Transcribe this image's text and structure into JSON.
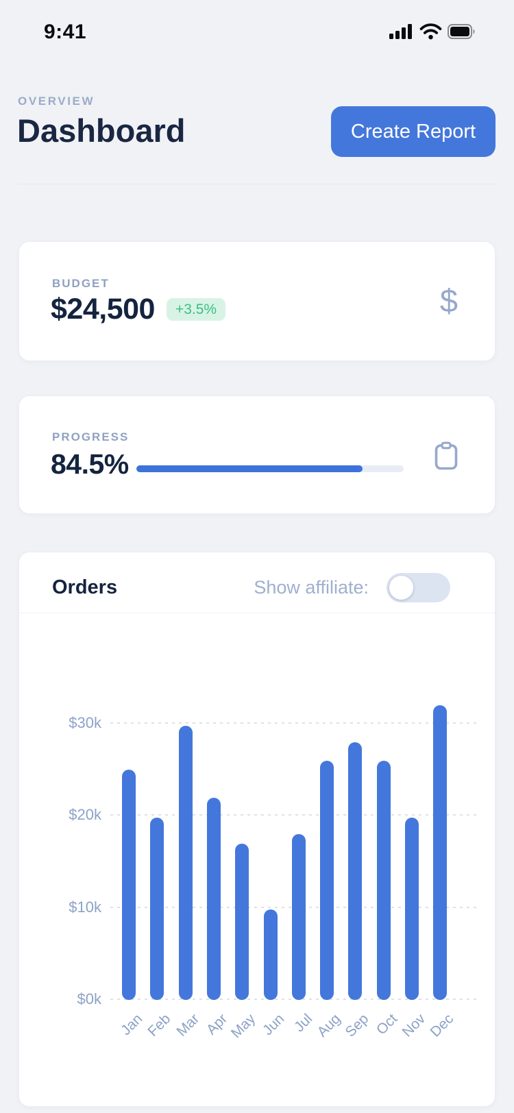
{
  "status_bar": {
    "time": "9:41",
    "icons": [
      "cellular-signal",
      "wifi",
      "battery-full"
    ]
  },
  "header": {
    "eyebrow": "OVERVIEW",
    "title": "Dashboard",
    "create_report_label": "Create Report"
  },
  "cards": {
    "budget": {
      "label": "BUDGET",
      "value": "$24,500",
      "delta": "+3.5%",
      "icon": "dollar"
    },
    "progress": {
      "label": "PROGRESS",
      "value": "84.5%",
      "percent": 84.5,
      "icon": "clipboard"
    },
    "orders": {
      "title": "Orders",
      "toggle_label": "Show affiliate:",
      "toggle_state": "off"
    }
  },
  "chart_data": {
    "type": "bar",
    "title": "Orders",
    "categories": [
      "Jan",
      "Feb",
      "Mar",
      "Apr",
      "May",
      "Jun",
      "Jul",
      "Aug",
      "Sep",
      "Oct",
      "Nov",
      "Dec"
    ],
    "values_usd_thousands": [
      25,
      19.8,
      29.8,
      22,
      17,
      9.8,
      18,
      26,
      28,
      26,
      19.8,
      32
    ],
    "xlabel": "",
    "ylabel": "",
    "y_ticks": [
      {
        "label": "$0k",
        "k": 0
      },
      {
        "label": "$10k",
        "k": 10
      },
      {
        "label": "$20k",
        "k": 20
      },
      {
        "label": "$30k",
        "k": 30
      }
    ],
    "ylim_k": [
      0,
      35
    ],
    "grid": "horizontal-dotted",
    "legend": "none",
    "bar_color": "#4477db",
    "x_label_rotation_deg": -45
  },
  "colors": {
    "page_bg": "#f0f2f6",
    "card_bg": "#ffffff",
    "accent_blue": "#4477db",
    "navy_text": "#1a2742",
    "muted_label": "#8fa1c1",
    "badge_bg": "#d8f3e5",
    "badge_text": "#3ebe84",
    "icon_muted": "#96a8cc",
    "toggle_track": "#dce3f1"
  }
}
